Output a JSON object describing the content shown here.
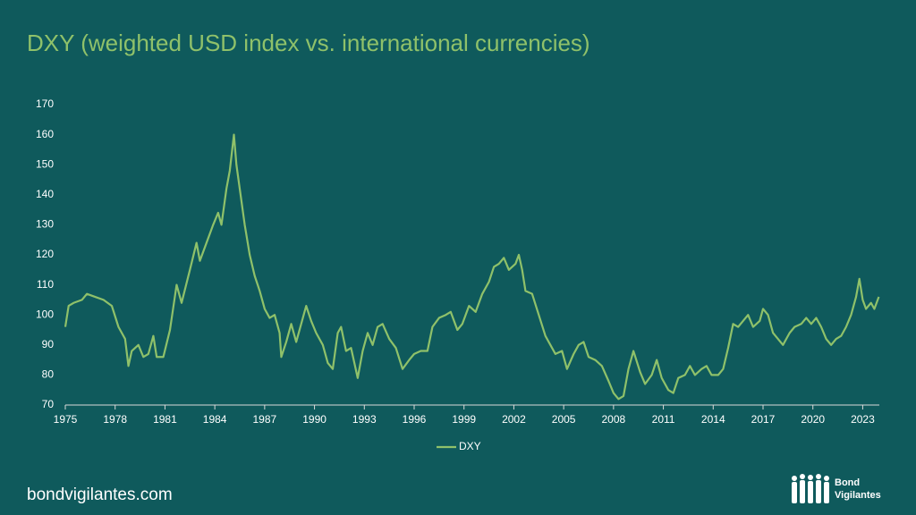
{
  "chart_data": {
    "type": "line",
    "title": "DXY (weighted USD index vs. international currencies)",
    "x": [
      1975.0,
      1975.2,
      1975.5,
      1976.0,
      1976.3,
      1976.8,
      1977.3,
      1977.8,
      1978.2,
      1978.6,
      1978.8,
      1979.0,
      1979.4,
      1979.7,
      1980.0,
      1980.3,
      1980.5,
      1980.9,
      1981.3,
      1981.7,
      1982.0,
      1982.5,
      1982.9,
      1983.1,
      1983.5,
      1983.9,
      1984.2,
      1984.4,
      1984.7,
      1984.9,
      1985.15,
      1985.3,
      1985.5,
      1985.8,
      1986.1,
      1986.4,
      1986.7,
      1987.0,
      1987.3,
      1987.6,
      1987.9,
      1988.0,
      1988.3,
      1988.6,
      1988.9,
      1989.3,
      1989.5,
      1989.8,
      1990.1,
      1990.5,
      1990.8,
      1991.1,
      1991.4,
      1991.6,
      1991.9,
      1992.2,
      1992.6,
      1992.9,
      1993.2,
      1993.5,
      1993.8,
      1994.1,
      1994.5,
      1994.9,
      1995.3,
      1995.7,
      1996.0,
      1996.4,
      1996.8,
      1997.1,
      1997.5,
      1997.9,
      1998.2,
      1998.6,
      1998.9,
      1999.3,
      1999.7,
      2000.1,
      2000.5,
      2000.8,
      2001.1,
      2001.4,
      2001.7,
      2002.1,
      2002.3,
      2002.5,
      2002.7,
      2003.1,
      2003.5,
      2003.9,
      2004.2,
      2004.5,
      2004.9,
      2005.2,
      2005.6,
      2005.9,
      2006.2,
      2006.5,
      2006.9,
      2007.3,
      2007.7,
      2008.0,
      2008.3,
      2008.6,
      2008.9,
      2009.2,
      2009.6,
      2009.9,
      2010.3,
      2010.6,
      2010.9,
      2011.3,
      2011.6,
      2011.9,
      2012.3,
      2012.6,
      2012.9,
      2013.3,
      2013.6,
      2013.9,
      2014.3,
      2014.6,
      2014.9,
      2015.2,
      2015.5,
      2015.8,
      2016.1,
      2016.4,
      2016.8,
      2017.0,
      2017.3,
      2017.6,
      2017.9,
      2018.2,
      2018.6,
      2018.9,
      2019.3,
      2019.6,
      2019.9,
      2020.2,
      2020.5,
      2020.8,
      2021.1,
      2021.4,
      2021.7,
      2022.0,
      2022.3,
      2022.6,
      2022.8,
      2023.0,
      2023.2,
      2023.5,
      2023.7,
      2023.97
    ],
    "series": [
      {
        "name": "DXY",
        "color": "#8fc16a",
        "values": [
          96,
          103,
          104,
          105,
          107,
          106,
          105,
          103,
          96,
          92,
          83,
          88,
          90,
          86,
          87,
          93,
          86,
          86,
          95,
          110,
          104,
          115,
          124,
          118,
          124,
          130,
          134,
          130,
          142,
          148,
          160,
          150,
          142,
          130,
          120,
          113,
          108,
          102,
          99,
          100,
          94,
          86,
          91,
          97,
          91,
          99,
          103,
          98,
          94,
          90,
          84,
          82,
          94,
          96,
          88,
          89,
          79,
          88,
          94,
          90,
          96,
          97,
          92,
          89,
          82,
          85,
          87,
          88,
          88,
          96,
          99,
          100,
          101,
          95,
          97,
          103,
          101,
          107,
          111,
          116,
          117,
          119,
          115,
          117,
          120,
          115,
          108,
          107,
          100,
          93,
          90,
          87,
          88,
          82,
          87,
          90,
          91,
          86,
          85,
          83,
          78,
          74,
          72,
          73,
          82,
          88,
          81,
          77,
          80,
          85,
          79,
          75,
          74,
          79,
          80,
          83,
          80,
          82,
          83,
          80,
          80,
          82,
          89,
          97,
          96,
          98,
          100,
          96,
          98,
          102,
          100,
          94,
          92,
          90,
          94,
          96,
          97,
          99,
          97,
          99,
          96,
          92,
          90,
          92,
          93,
          96,
          100,
          106,
          112,
          105,
          102,
          104,
          102,
          106
        ]
      }
    ],
    "xlim": [
      1975,
      2024
    ],
    "xticks": [
      1975,
      1978,
      1981,
      1984,
      1987,
      1990,
      1993,
      1996,
      1999,
      2002,
      2005,
      2008,
      2011,
      2014,
      2017,
      2020,
      2023
    ],
    "ylim": [
      70,
      170
    ],
    "yticks": [
      70,
      80,
      90,
      100,
      110,
      120,
      130,
      140,
      150,
      160,
      170
    ],
    "grid": false,
    "legend": "bottom"
  },
  "footer": {
    "site": "bondvigilantes.com",
    "logo": [
      "Bond",
      "Vigilantes"
    ]
  }
}
